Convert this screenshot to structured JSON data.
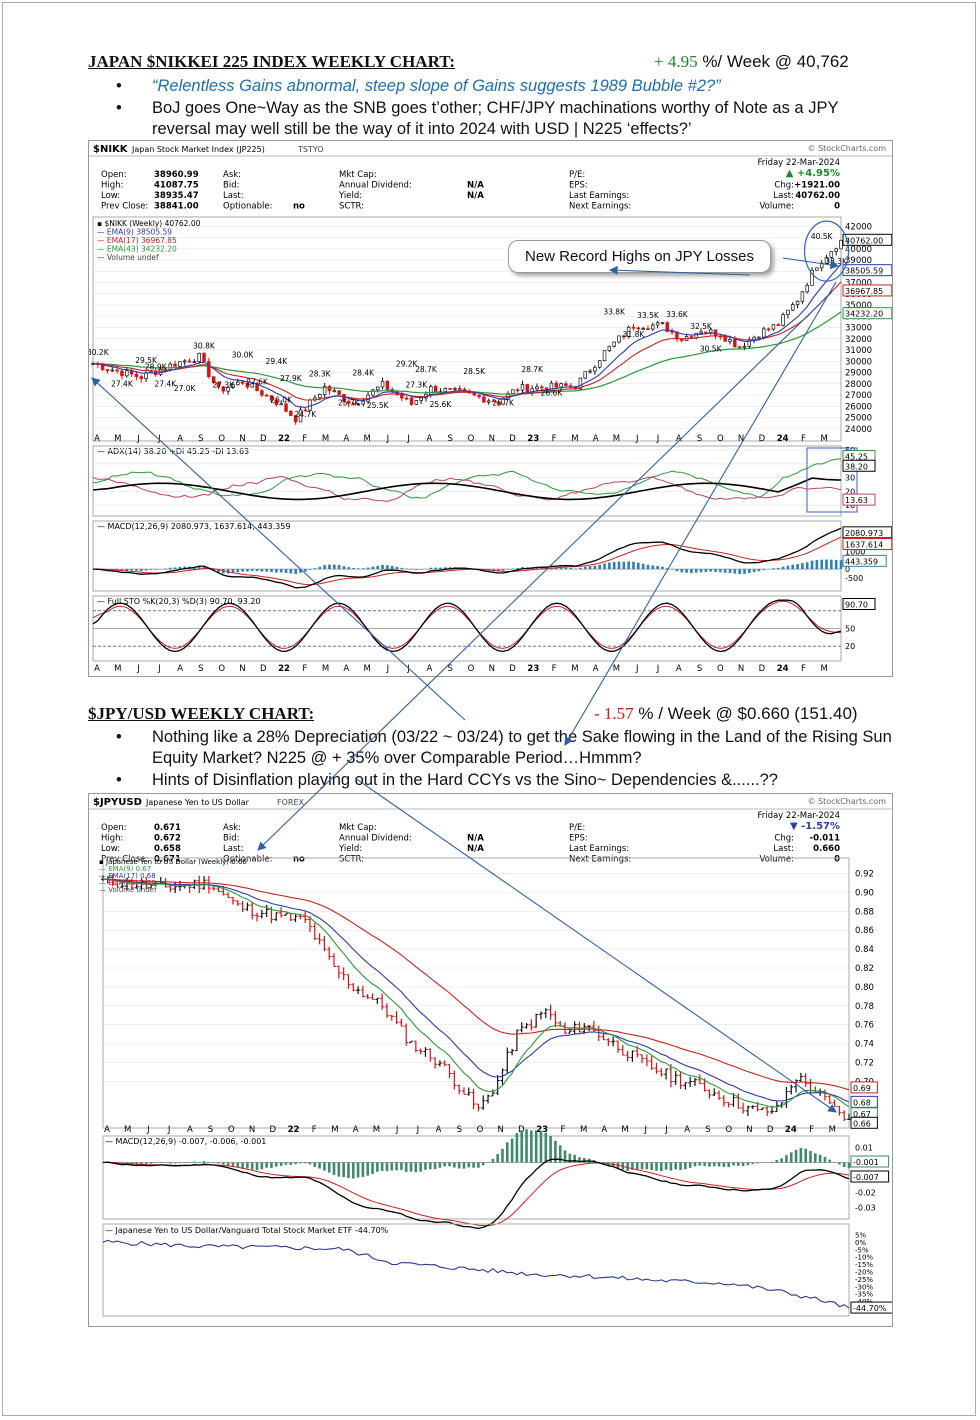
{
  "nikkei": {
    "title": "JAPAN $NIKKEI 225 INDEX WEEKLY CHART:",
    "perf_value": "+ 4.95",
    "perf_rest": " %/ Week @ 40,762",
    "bullets": [
      "“Relentless Gains abnormal, steep slope of Gains suggests 1989 Bubble #2?”",
      "BoJ goes One~Way as the SNB goes t’other; CHF/JPY machinations worthy of Note as a JPY reversal may well still be the way of it into 2024 with USD | N225 ‘effects?’"
    ],
    "callout": "New Record Highs on JPY Losses",
    "header": {
      "symbol": "$NIKK",
      "name": "Japan Stock Market Index (JP225)",
      "exchange": "TSTYO",
      "watermark": "© StockCharts.com",
      "date": "Friday 22-Mar-2024",
      "change_pct": "▲ +4.95%",
      "rows": [
        [
          "Open:",
          "38960.99",
          "Ask:",
          "",
          "Mkt Cap:",
          "",
          "P/E:",
          "",
          "",
          ""
        ],
        [
          "High:",
          "41087.75",
          "Bid:",
          "",
          "Annual Dividend:",
          "N/A",
          "EPS:",
          "",
          "Chg:",
          "+1921.00"
        ],
        [
          "Low:",
          "38935.47",
          "Last:",
          "",
          "Yield:",
          "N/A",
          "Last Earnings:",
          "",
          "Last:",
          "40762.00"
        ],
        [
          "Prev Close:",
          "38841.00",
          "Optionable:",
          "no",
          "SCTR:",
          "",
          "Next Earnings:",
          "",
          "Volume:",
          "0"
        ]
      ]
    },
    "legend": [
      "$NIKK (Weekly) 40762.00",
      "EMA(9) 38505.59",
      "EMA(17) 36967.85",
      "EMA(43) 34232.20",
      "Volume undef"
    ],
    "price_axis": [
      "42000",
      "41000",
      "40000",
      "39000",
      "38000",
      "37000",
      "36000",
      "35000",
      "34000",
      "33000",
      "32000",
      "31000",
      "30000",
      "29000",
      "28000",
      "27000",
      "26000",
      "25000",
      "24000"
    ],
    "right_tags": [
      "40762.00",
      "38505.59",
      "36967.85",
      "34232.20"
    ],
    "peak_labels": [
      "30.2K",
      "29.5K",
      "28.9K",
      "27.4K",
      "27.4K",
      "27.0K",
      "30.8K",
      "27.3K",
      "30.0K",
      "27.6K",
      "29.4K",
      "27.9K",
      "26.0K",
      "24.7K",
      "28.3K",
      "25.7K",
      "28.4K",
      "25.5K",
      "29.2K",
      "28.7K",
      "27.3K",
      "25.6K",
      "28.5K",
      "25.7K",
      "28.7K",
      "26.6K",
      "33.8K",
      "33.5K",
      "31.8K",
      "33.6K",
      "32.5K",
      "30.5K",
      "40.5K",
      "38.3K"
    ],
    "months": [
      "A",
      "M",
      "J",
      "J",
      "A",
      "S",
      "O",
      "N",
      "D",
      "22",
      "F",
      "M",
      "A",
      "M",
      "J",
      "J",
      "A",
      "S",
      "O",
      "N",
      "D",
      "23",
      "F",
      "M",
      "A",
      "M",
      "J",
      "J",
      "A",
      "S",
      "O",
      "N",
      "D",
      "24",
      "F",
      "M"
    ],
    "adx": {
      "label": "ADX(14) 38.20 +DI 45.25 -DI 13.63",
      "axis": [
        "50",
        "40",
        "30",
        "20",
        "10"
      ],
      "tags": [
        "45.25",
        "38.20",
        "13.63"
      ]
    },
    "macd": {
      "label": "MACD(12,26,9) 2080.973, 1637.614, 443.359",
      "axis": [
        "1000",
        "0",
        "-500"
      ],
      "tags": [
        "2080.973",
        "1637.614",
        "443.359"
      ]
    },
    "sto": {
      "label": "Full STO %K(20,3) %D(3) 90.70, 93.20",
      "axis": [
        "50",
        "20"
      ],
      "tags": [
        "90.70"
      ]
    }
  },
  "jpy": {
    "title": "$JPY/USD WEEKLY CHART:",
    "perf_value": "- 1.57",
    "perf_rest": " % / Week @ $0.660 (151.40)",
    "bullets": [
      "Nothing like a 28% Depreciation (03/22 ~ 03/24) to get the Sake flowing in the Land of the Rising Sun Equity Market? N225 @ + 35% over Comparable Period…Hmmm?",
      "Hints of Disinflation playing out in the Hard CCYs vs the Sino~ Dependencies &......??"
    ],
    "header": {
      "symbol": "$JPYUSD",
      "name": "Japanese Yen to US Dollar",
      "exchange": "FOREX",
      "watermark": "© StockCharts.com",
      "date": "Friday 22-Mar-2024",
      "change_pct": "▼ -1.57%",
      "rows": [
        [
          "Open:",
          "0.671",
          "Ask:",
          "",
          "Mkt Cap:",
          "",
          "P/E:",
          "",
          "",
          ""
        ],
        [
          "High:",
          "0.672",
          "Bid:",
          "",
          "Annual Dividend:",
          "N/A",
          "EPS:",
          "",
          "Chg:",
          "-0.011"
        ],
        [
          "Low:",
          "0.658",
          "Last:",
          "",
          "Yield:",
          "N/A",
          "Last Earnings:",
          "",
          "Last:",
          "0.660"
        ],
        [
          "Prev Close:",
          "0.671",
          "Optionable:",
          "no",
          "SCTR:",
          "",
          "Next Earnings:",
          "",
          "Volume:",
          "0"
        ]
      ]
    },
    "legend": [
      "Japanese Yen to US Dollar (Weekly) 0.66",
      "EMA(9) 0.67",
      "EMA(17) 0.68",
      "EMA(43) 0.69",
      "Volume undef"
    ],
    "price_axis": [
      "0.92",
      "0.90",
      "0.88",
      "0.86",
      "0.84",
      "0.82",
      "0.80",
      "0.78",
      "0.76",
      "0.74",
      "0.72",
      "0.70"
    ],
    "right_tags": [
      "0.69",
      "0.68",
      "0.67",
      "0.66"
    ],
    "months": [
      "A",
      "M",
      "J",
      "J",
      "A",
      "S",
      "O",
      "N",
      "D",
      "22",
      "F",
      "M",
      "A",
      "M",
      "J",
      "J",
      "A",
      "S",
      "O",
      "N",
      "D",
      "23",
      "F",
      "M",
      "A",
      "M",
      "J",
      "J",
      "A",
      "S",
      "O",
      "N",
      "D",
      "24",
      "F",
      "M"
    ],
    "macd": {
      "label": "MACD(12,26,9) -0.007, -0.006, -0.001",
      "axis": [
        "0.01",
        "-0.01",
        "-0.02",
        "-0.03"
      ],
      "tags": [
        "-0.001",
        "-0.007"
      ]
    },
    "ratio": {
      "label": "Japanese Yen to US Dollar/Vanguard Total Stock Market ETF -44.70%",
      "axis": [
        "5%",
        "0%",
        "-5%",
        "-10%",
        "-15%",
        "-20%",
        "-25%",
        "-30%",
        "-35%",
        "-40%"
      ],
      "tags": [
        "-44.70%"
      ]
    }
  },
  "colors": {
    "ema9": "#2a9a3a",
    "ema17": "#2a3ab0",
    "ema43": "#d02020",
    "up": "#111111",
    "down": "#e01010",
    "arrow": "#3060a8"
  },
  "chart_data": [
    {
      "type": "line",
      "title": "$NIKK Japan Stock Market Index (JP225) Weekly",
      "x": [
        "2021-04",
        "2021-06",
        "2021-09",
        "2021-12",
        "2022-03",
        "2022-06",
        "2022-09",
        "2022-12",
        "2023-03",
        "2023-06",
        "2023-09",
        "2023-12",
        "2024-02",
        "2024-03"
      ],
      "series": [
        {
          "name": "$NIKK (Weekly)",
          "values": [
            29500,
            28900,
            30200,
            28800,
            25600,
            26600,
            27300,
            26500,
            27500,
            33500,
            32000,
            33400,
            38800,
            40762
          ]
        }
      ],
      "ylim": [
        24000,
        42000
      ]
    },
    {
      "type": "line",
      "title": "$JPYUSD Japanese Yen to US Dollar Weekly",
      "x": [
        "2021-04",
        "2021-06",
        "2021-09",
        "2021-12",
        "2022-03",
        "2022-06",
        "2022-09",
        "2022-10",
        "2023-01",
        "2023-03",
        "2023-06",
        "2023-09",
        "2023-11",
        "2024-01",
        "2024-03"
      ],
      "series": [
        {
          "name": "Japanese Yen to US Dollar (Weekly)",
          "values": [
            0.91,
            0.905,
            0.91,
            0.88,
            0.87,
            0.74,
            0.7,
            0.675,
            0.78,
            0.75,
            0.7,
            0.67,
            0.66,
            0.71,
            0.66
          ]
        }
      ],
      "ylim": [
        0.65,
        0.93
      ]
    }
  ]
}
